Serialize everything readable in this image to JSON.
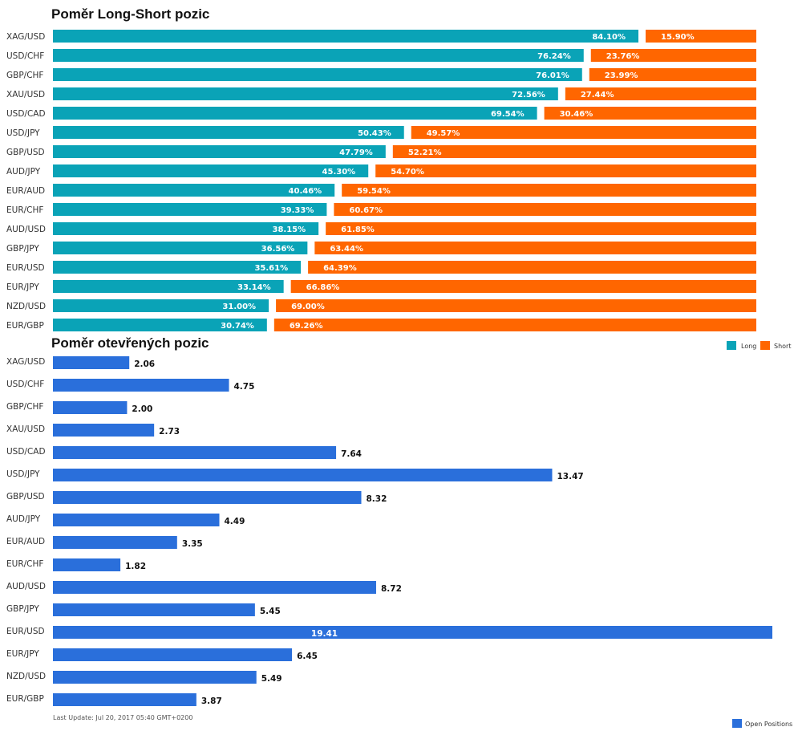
{
  "colors": {
    "long": "#0aa3b7",
    "short": "#ff6600",
    "open": "#2a6fdb"
  },
  "chart_data": [
    {
      "type": "bar",
      "orientation": "horizontal",
      "stacked": true,
      "title": "Poměr Long-Short pozic",
      "categories": [
        "XAG/USD",
        "USD/CHF",
        "GBP/CHF",
        "XAU/USD",
        "USD/CAD",
        "USD/JPY",
        "GBP/USD",
        "AUD/JPY",
        "EUR/AUD",
        "EUR/CHF",
        "AUD/USD",
        "GBP/JPY",
        "EUR/USD",
        "EUR/JPY",
        "NZD/USD",
        "EUR/GBP"
      ],
      "series": [
        {
          "name": "Long",
          "values": [
            84.1,
            76.24,
            76.01,
            72.56,
            69.54,
            50.43,
            47.79,
            45.3,
            40.46,
            39.33,
            38.15,
            36.56,
            35.61,
            33.14,
            31.0,
            30.74
          ]
        },
        {
          "name": "Short",
          "values": [
            15.9,
            23.76,
            23.99,
            27.44,
            30.46,
            49.57,
            52.21,
            54.7,
            59.54,
            60.67,
            61.85,
            63.44,
            64.39,
            66.86,
            69.0,
            69.26
          ]
        }
      ],
      "labels": {
        "long": [
          "84.10%",
          "76.24%",
          "76.01%",
          "72.56%",
          "69.54%",
          "50.43%",
          "47.79%",
          "45.30%",
          "40.46%",
          "39.33%",
          "38.15%",
          "36.56%",
          "35.61%",
          "33.14%",
          "31.00%",
          "30.74%"
        ],
        "short": [
          "15.90%",
          "23.76%",
          "23.99%",
          "27.44%",
          "30.46%",
          "49.57%",
          "52.21%",
          "54.70%",
          "59.54%",
          "60.67%",
          "61.85%",
          "63.44%",
          "64.39%",
          "66.86%",
          "69.00%",
          "69.26%"
        ]
      },
      "legend": [
        "Long",
        "Short"
      ],
      "legend_position": "right"
    },
    {
      "type": "bar",
      "orientation": "horizontal",
      "title": "Poměr otevřených pozic",
      "categories": [
        "XAG/USD",
        "USD/CHF",
        "GBP/CHF",
        "XAU/USD",
        "USD/CAD",
        "USD/JPY",
        "GBP/USD",
        "AUD/JPY",
        "EUR/AUD",
        "EUR/CHF",
        "AUD/USD",
        "GBP/JPY",
        "EUR/USD",
        "EUR/JPY",
        "NZD/USD",
        "EUR/GBP"
      ],
      "values": [
        2.06,
        4.75,
        2.0,
        2.73,
        7.64,
        13.47,
        8.32,
        4.49,
        3.35,
        1.82,
        8.72,
        5.45,
        19.41,
        6.45,
        5.49,
        3.87
      ],
      "labels": [
        "2.06",
        "4.75",
        "2.00",
        "2.73",
        "7.64",
        "13.47",
        "8.32",
        "4.49",
        "3.35",
        "1.82",
        "8.72",
        "5.45",
        "19.41",
        "6.45",
        "5.49",
        "3.87"
      ],
      "legend": [
        "Open Positions"
      ],
      "legend_position": "bottom-right",
      "footer": "Last Update: Jul 20, 2017 05:40 GMT+0200"
    }
  ]
}
